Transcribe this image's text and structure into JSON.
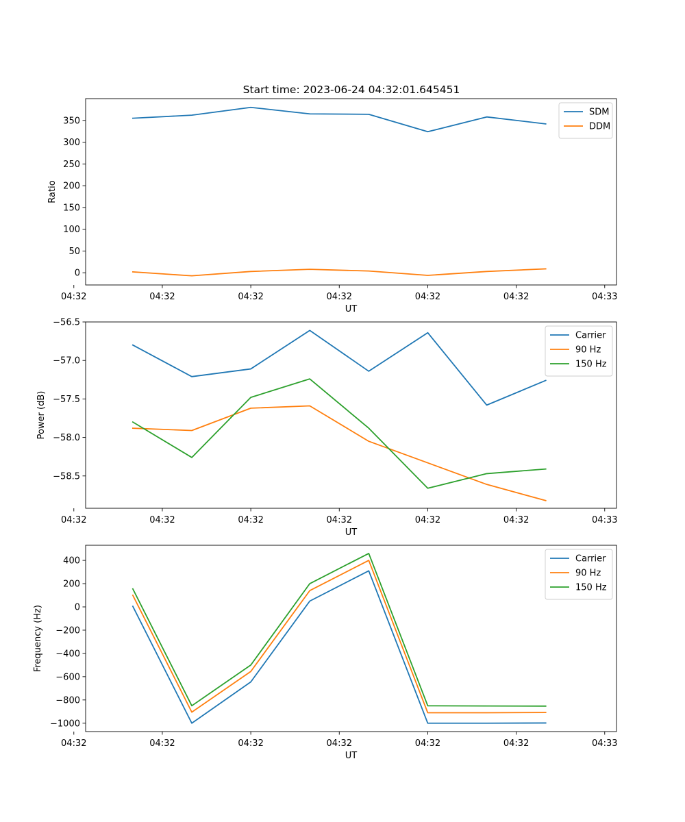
{
  "figure_title": "Start time: 2023-06-24 04:32:01.645451",
  "colors": {
    "blue": "#1f77b4",
    "orange": "#ff7f0e",
    "green": "#2ca02c"
  },
  "chart_data": [
    {
      "type": "line",
      "title": "Start time: 2023-06-24 04:32:01.645451",
      "xlabel": "UT",
      "ylabel": "Ratio",
      "x": [
        1,
        2,
        3,
        4,
        5,
        6,
        7,
        8
      ],
      "xlim": [
        0.2,
        9.2
      ],
      "x_ticks": [
        0,
        1.5,
        3,
        4.5,
        6,
        7.5,
        9
      ],
      "x_tick_labels": [
        "04:32",
        "04:32",
        "04:32",
        "04:32",
        "04:32",
        "04:32",
        "04:33"
      ],
      "ylim": [
        -28,
        400
      ],
      "y_ticks": [
        0,
        50,
        100,
        150,
        200,
        250,
        300,
        350
      ],
      "y_tick_labels": [
        "0",
        "50",
        "100",
        "150",
        "200",
        "250",
        "300",
        "350"
      ],
      "legend": "top-right",
      "grid": false,
      "series": [
        {
          "name": "SDM",
          "color": "#1f77b4",
          "values": [
            355,
            362,
            380,
            365,
            364,
            324,
            358,
            342
          ]
        },
        {
          "name": "DDM",
          "color": "#ff7f0e",
          "values": [
            2,
            -7,
            3,
            8,
            4,
            -6,
            3,
            9
          ]
        }
      ]
    },
    {
      "type": "line",
      "title": "",
      "xlabel": "UT",
      "ylabel": "Power (dB)",
      "x": [
        1,
        2,
        3,
        4,
        5,
        6,
        7,
        8
      ],
      "xlim": [
        0.2,
        9.2
      ],
      "x_ticks": [
        0,
        1.5,
        3,
        4.5,
        6,
        7.5,
        9
      ],
      "x_tick_labels": [
        "04:32",
        "04:32",
        "04:32",
        "04:32",
        "04:32",
        "04:32",
        "04:33"
      ],
      "ylim": [
        -58.92,
        -56.5
      ],
      "y_ticks": [
        -56.5,
        -57.0,
        -57.5,
        -58.0,
        -58.5
      ],
      "y_tick_labels": [
        "−56.5",
        "−57.0",
        "−57.5",
        "−58.0",
        "−58.5"
      ],
      "legend": "top-right",
      "grid": false,
      "series": [
        {
          "name": "Carrier",
          "color": "#1f77b4",
          "values": [
            -56.8,
            -57.21,
            -57.11,
            -56.61,
            -57.14,
            -56.64,
            -57.58,
            -57.26
          ]
        },
        {
          "name": "90 Hz",
          "color": "#ff7f0e",
          "values": [
            -57.88,
            -57.91,
            -57.62,
            -57.59,
            -58.05,
            -58.33,
            -58.61,
            -58.82
          ]
        },
        {
          "name": "150 Hz",
          "color": "#2ca02c",
          "values": [
            -57.8,
            -58.26,
            -57.48,
            -57.24,
            -57.88,
            -58.66,
            -58.47,
            -58.41
          ]
        }
      ]
    },
    {
      "type": "line",
      "title": "",
      "xlabel": "UT",
      "ylabel": "Frequency (Hz)",
      "x": [
        1,
        2,
        3,
        4,
        5,
        6,
        7,
        8
      ],
      "xlim": [
        0.2,
        9.2
      ],
      "x_ticks": [
        0,
        1.5,
        3,
        4.5,
        6,
        7.5,
        9
      ],
      "x_tick_labels": [
        "04:32",
        "04:32",
        "04:32",
        "04:32",
        "04:32",
        "04:32",
        "04:33"
      ],
      "ylim": [
        -1072,
        530
      ],
      "y_ticks": [
        400,
        200,
        0,
        -200,
        -400,
        -600,
        -800,
        -1000
      ],
      "y_tick_labels": [
        "400",
        "200",
        "0",
        "−200",
        "−400",
        "−600",
        "−800",
        "−1000"
      ],
      "legend": "top-right",
      "grid": false,
      "series": [
        {
          "name": "Carrier",
          "color": "#1f77b4",
          "values": [
            5,
            -1000,
            -645,
            50,
            310,
            -1000,
            -1000,
            -998
          ]
        },
        {
          "name": "90 Hz",
          "color": "#ff7f0e",
          "values": [
            100,
            -905,
            -555,
            140,
            400,
            -910,
            -910,
            -908
          ]
        },
        {
          "name": "150 Hz",
          "color": "#2ca02c",
          "values": [
            155,
            -850,
            -500,
            200,
            460,
            -850,
            -852,
            -853
          ]
        }
      ]
    }
  ]
}
